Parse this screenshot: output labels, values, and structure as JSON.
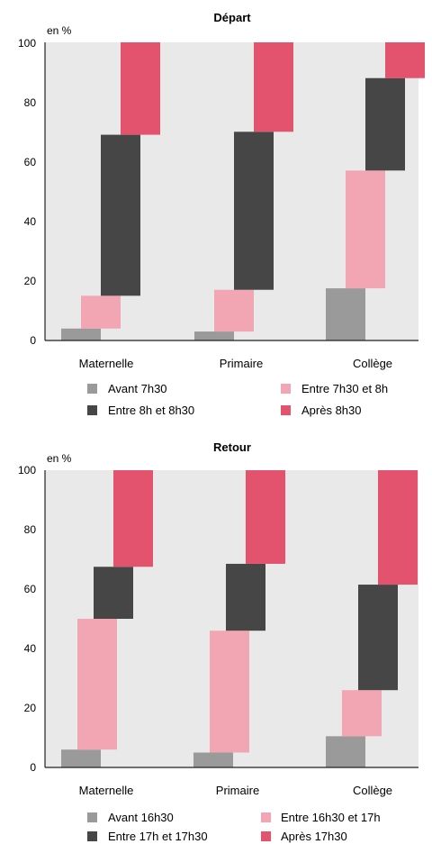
{
  "chart_data": [
    {
      "type": "bar",
      "title": "Départ",
      "unit_label": "en %",
      "ylim": [
        0,
        100
      ],
      "yticks": [
        "0",
        "20",
        "40",
        "60",
        "80",
        "100"
      ],
      "categories": [
        "Maternelle",
        "Primaire",
        "Collège"
      ],
      "series": [
        {
          "name": "Avant 7h30",
          "color": "#9a9a9a",
          "start": [
            0,
            0,
            0
          ],
          "end": [
            4,
            3,
            17.5
          ]
        },
        {
          "name": "Entre 7h30 et 8h",
          "color": "#f2a6b3",
          "start": [
            4,
            3,
            17.5
          ],
          "end": [
            15,
            17,
            57
          ]
        },
        {
          "name": "Entre 8h et 8h30",
          "color": "#464646",
          "start": [
            15,
            17,
            57
          ],
          "end": [
            69,
            70,
            88
          ]
        },
        {
          "name": "Après 8h30",
          "color": "#e3536e",
          "start": [
            69,
            70,
            88
          ],
          "end": [
            100,
            100,
            100
          ]
        }
      ]
    },
    {
      "type": "bar",
      "title": "Retour",
      "unit_label": "en %",
      "ylim": [
        0,
        100
      ],
      "yticks": [
        "0",
        "20",
        "40",
        "60",
        "80",
        "100"
      ],
      "categories": [
        "Maternelle",
        "Primaire",
        "Collège"
      ],
      "series": [
        {
          "name": "Avant 16h30",
          "color": "#9a9a9a",
          "start": [
            0,
            0,
            0
          ],
          "end": [
            6,
            5,
            10.5
          ]
        },
        {
          "name": "Entre 16h30 et 17h",
          "color": "#f2a6b3",
          "start": [
            6,
            5,
            10.5
          ],
          "end": [
            50,
            46,
            26
          ]
        },
        {
          "name": "Entre 17h et 17h30",
          "color": "#464646",
          "start": [
            50,
            46,
            26
          ],
          "end": [
            67.5,
            68.5,
            61.5
          ]
        },
        {
          "name": "Après 17h30",
          "color": "#e3536e",
          "start": [
            67.5,
            68.5,
            61.5
          ],
          "end": [
            100,
            100,
            100
          ]
        }
      ]
    }
  ],
  "colors": {
    "plot_background": "#e9e9e9",
    "axis": "#222222"
  }
}
